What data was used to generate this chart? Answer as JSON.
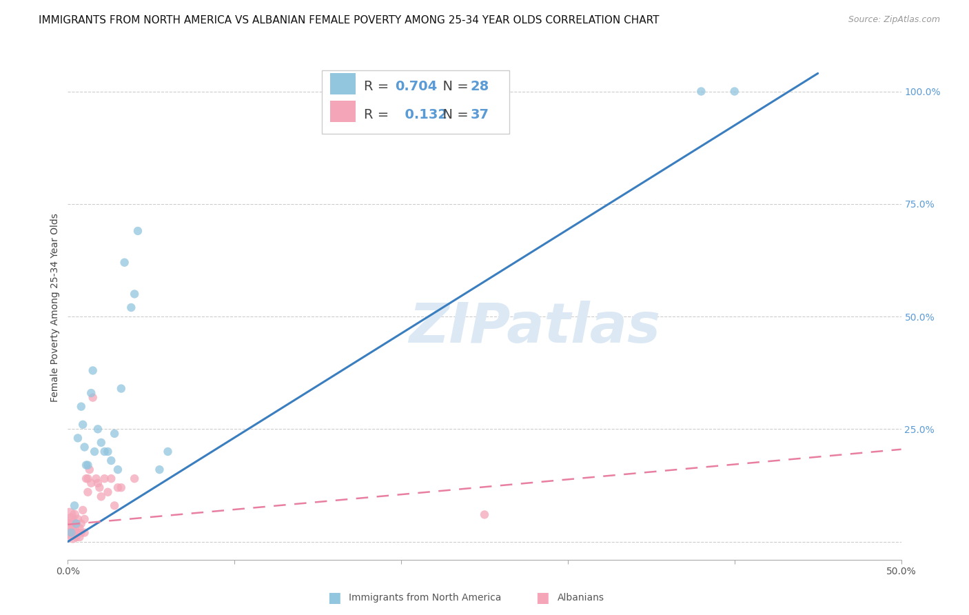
{
  "title": "IMMIGRANTS FROM NORTH AMERICA VS ALBANIAN FEMALE POVERTY AMONG 25-34 YEAR OLDS CORRELATION CHART",
  "source": "Source: ZipAtlas.com",
  "ylabel": "Female Poverty Among 25-34 Year Olds",
  "xlim": [
    0.0,
    0.5
  ],
  "ylim": [
    -0.04,
    1.08
  ],
  "x_ticks": [
    0.0,
    0.1,
    0.2,
    0.3,
    0.4,
    0.5
  ],
  "x_tick_labels": [
    "0.0%",
    "",
    "",
    "",
    "",
    "50.0%"
  ],
  "y_ticks_right": [
    0.0,
    0.25,
    0.5,
    0.75,
    1.0
  ],
  "y_tick_labels_right": [
    "",
    "25.0%",
    "50.0%",
    "75.0%",
    "100.0%"
  ],
  "legend1_label": "Immigrants from North America",
  "legend2_label": "Albanians",
  "R1": 0.704,
  "N1": 28,
  "R2": 0.132,
  "N2": 37,
  "blue_color": "#92c5de",
  "pink_color": "#f4a6b8",
  "blue_line_color": "#3a7ebf",
  "pink_line_color": "#e87fa0",
  "watermark_color": "#dce9f5",
  "watermark": "ZIPatlas",
  "background_color": "#ffffff",
  "blue_scatter_x": [
    0.002,
    0.004,
    0.005,
    0.006,
    0.008,
    0.009,
    0.01,
    0.011,
    0.012,
    0.014,
    0.015,
    0.016,
    0.018,
    0.02,
    0.022,
    0.024,
    0.026,
    0.028,
    0.03,
    0.032,
    0.034,
    0.038,
    0.04,
    0.042,
    0.055,
    0.06,
    0.38,
    0.4
  ],
  "blue_scatter_y": [
    0.02,
    0.08,
    0.04,
    0.23,
    0.3,
    0.26,
    0.21,
    0.17,
    0.17,
    0.33,
    0.38,
    0.2,
    0.25,
    0.22,
    0.2,
    0.2,
    0.18,
    0.24,
    0.16,
    0.34,
    0.62,
    0.52,
    0.55,
    0.69,
    0.16,
    0.2,
    1.0,
    1.0
  ],
  "blue_scatter_sizes": [
    80,
    80,
    80,
    80,
    80,
    80,
    80,
    80,
    80,
    80,
    80,
    80,
    80,
    80,
    80,
    80,
    80,
    80,
    80,
    80,
    80,
    80,
    80,
    80,
    80,
    80,
    80,
    80
  ],
  "pink_scatter_x": [
    0.001,
    0.001,
    0.002,
    0.002,
    0.003,
    0.003,
    0.004,
    0.004,
    0.005,
    0.005,
    0.006,
    0.006,
    0.007,
    0.007,
    0.008,
    0.008,
    0.009,
    0.01,
    0.01,
    0.011,
    0.012,
    0.012,
    0.013,
    0.014,
    0.015,
    0.017,
    0.018,
    0.019,
    0.02,
    0.022,
    0.024,
    0.026,
    0.028,
    0.03,
    0.032,
    0.04,
    0.25
  ],
  "pink_scatter_y": [
    0.03,
    0.06,
    0.02,
    0.05,
    0.01,
    0.04,
    0.03,
    0.06,
    0.01,
    0.04,
    0.02,
    0.05,
    0.03,
    0.01,
    0.04,
    0.02,
    0.07,
    0.05,
    0.02,
    0.14,
    0.11,
    0.14,
    0.16,
    0.13,
    0.32,
    0.14,
    0.13,
    0.12,
    0.1,
    0.14,
    0.11,
    0.14,
    0.08,
    0.12,
    0.12,
    0.14,
    0.06
  ],
  "pink_scatter_sizes": [
    300,
    200,
    200,
    150,
    150,
    120,
    100,
    100,
    80,
    80,
    80,
    80,
    80,
    80,
    80,
    80,
    80,
    80,
    80,
    80,
    80,
    80,
    80,
    80,
    80,
    80,
    80,
    80,
    80,
    80,
    80,
    80,
    80,
    80,
    80,
    80,
    80
  ],
  "blue_line_x": [
    0.0,
    0.45
  ],
  "blue_line_y": [
    0.0,
    1.04
  ],
  "pink_line_x": [
    0.0,
    0.5
  ],
  "pink_line_y": [
    0.038,
    0.205
  ],
  "title_fontsize": 11,
  "axis_label_fontsize": 10,
  "tick_fontsize": 10,
  "legend_fontsize": 14
}
